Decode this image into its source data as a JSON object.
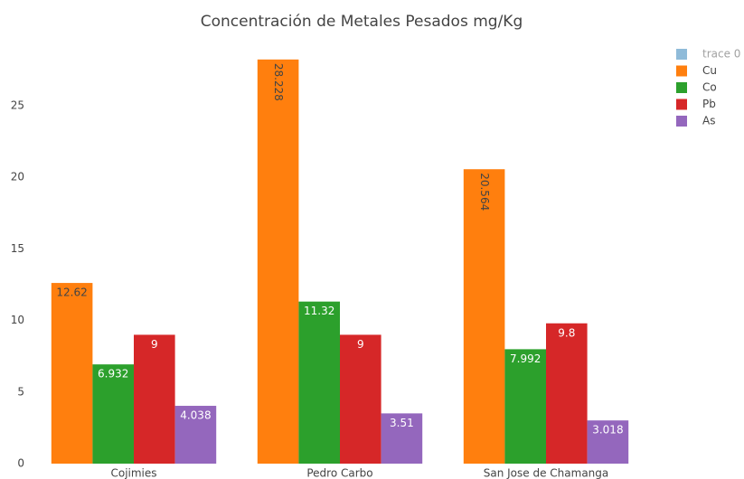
{
  "chart_data": {
    "type": "bar",
    "title": "Concentración de Metales Pesados mg/Kg",
    "categories": [
      "Cojimies",
      "Pedro Carbo",
      "San Jose de Chamanga"
    ],
    "series": [
      {
        "name": "trace 0",
        "color": "#1f77b4",
        "visible": "legendonly",
        "values": [
          null,
          null,
          null
        ]
      },
      {
        "name": "Cu",
        "color": "#ff7f0e",
        "values": [
          12.62,
          28.228,
          20.564
        ]
      },
      {
        "name": "Co",
        "color": "#2ca02c",
        "values": [
          6.932,
          11.32,
          7.992
        ]
      },
      {
        "name": "Pb",
        "color": "#d62728",
        "values": [
          9,
          9,
          9.8
        ]
      },
      {
        "name": "As",
        "color": "#9467bd",
        "values": [
          4.038,
          3.51,
          3.018
        ]
      }
    ],
    "ylim": [
      0,
      29.7
    ],
    "yticks": [
      0,
      5,
      10,
      15,
      20,
      25
    ],
    "grid": false,
    "legend": "top-right"
  }
}
